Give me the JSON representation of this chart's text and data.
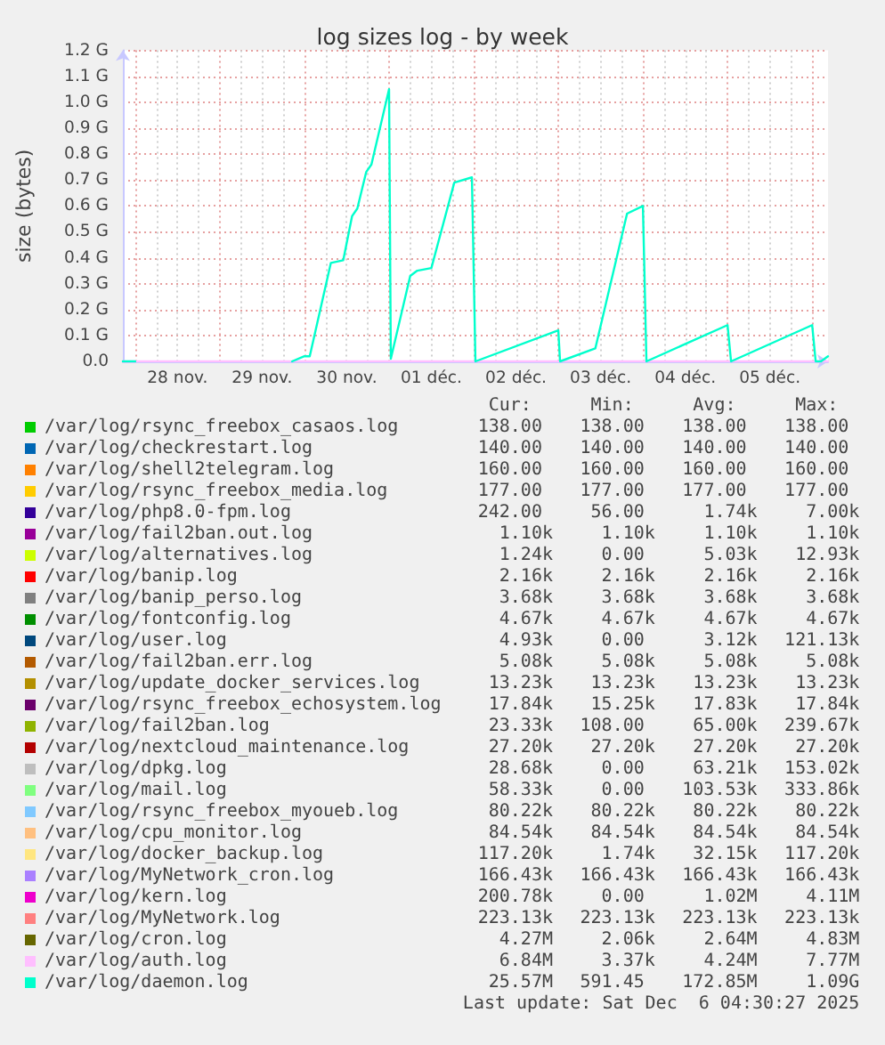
{
  "chart_data": {
    "type": "line",
    "title": "log sizes log - by week",
    "ylabel": "size (bytes)",
    "x": [
      "2025-11-27T20:30",
      "2025-12-06T04:30"
    ],
    "xlim": [
      "2025-11-27T20:30",
      "2025-12-06T04:30"
    ],
    "xticks": [
      {
        "value": "2025-11-28T00:00",
        "label": null
      },
      {
        "value": "2025-11-28T06:00",
        "label": null
      },
      {
        "value": "2025-11-28T12:00",
        "label": "28 nov."
      },
      {
        "value": "2025-11-28T18:00",
        "label": null
      },
      {
        "value": "2025-11-29T00:00",
        "label": null
      },
      {
        "value": "2025-11-29T06:00",
        "label": null
      },
      {
        "value": "2025-11-29T12:00",
        "label": "29 nov."
      },
      {
        "value": "2025-11-29T18:00",
        "label": null
      },
      {
        "value": "2025-11-30T00:00",
        "label": null
      },
      {
        "value": "2025-11-30T06:00",
        "label": null
      },
      {
        "value": "2025-11-30T12:00",
        "label": "30 nov."
      },
      {
        "value": "2025-11-30T18:00",
        "label": null
      },
      {
        "value": "2025-12-01T00:00",
        "label": null
      },
      {
        "value": "2025-12-01T06:00",
        "label": null
      },
      {
        "value": "2025-12-01T12:00",
        "label": "01 déc."
      },
      {
        "value": "2025-12-01T18:00",
        "label": null
      },
      {
        "value": "2025-12-02T00:00",
        "label": null
      },
      {
        "value": "2025-12-02T06:00",
        "label": null
      },
      {
        "value": "2025-12-02T12:00",
        "label": "02 déc."
      },
      {
        "value": "2025-12-02T18:00",
        "label": null
      },
      {
        "value": "2025-12-03T00:00",
        "label": null
      },
      {
        "value": "2025-12-03T06:00",
        "label": null
      },
      {
        "value": "2025-12-03T12:00",
        "label": "03 déc."
      },
      {
        "value": "2025-12-03T18:00",
        "label": null
      },
      {
        "value": "2025-12-04T00:00",
        "label": null
      },
      {
        "value": "2025-12-04T06:00",
        "label": null
      },
      {
        "value": "2025-12-04T12:00",
        "label": "04 déc."
      },
      {
        "value": "2025-12-04T18:00",
        "label": null
      },
      {
        "value": "2025-12-05T00:00",
        "label": null
      },
      {
        "value": "2025-12-05T06:00",
        "label": null
      },
      {
        "value": "2025-12-05T12:00",
        "label": "05 déc."
      },
      {
        "value": "2025-12-05T18:00",
        "label": null
      },
      {
        "value": "2025-12-06T00:00",
        "label": null
      }
    ],
    "ylim": [
      0,
      1.2
    ],
    "yticks": [
      {
        "value": 0,
        "label": "0.0"
      },
      {
        "value": 0.1,
        "label": "0.1 G"
      },
      {
        "value": 0.2,
        "label": "0.2 G"
      },
      {
        "value": 0.3,
        "label": "0.3 G"
      },
      {
        "value": 0.4,
        "label": "0.4 G"
      },
      {
        "value": 0.5,
        "label": "0.5 G"
      },
      {
        "value": 0.6,
        "label": "0.6 G"
      },
      {
        "value": 0.7,
        "label": "0.7 G"
      },
      {
        "value": 0.8,
        "label": "0.8 G"
      },
      {
        "value": 0.9,
        "label": "0.9 G"
      },
      {
        "value": 1.0,
        "label": "1.0 G"
      },
      {
        "value": 1.1,
        "label": "1.1 G"
      },
      {
        "value": 1.2,
        "label": "1.2 G"
      }
    ],
    "grid": true,
    "legend": "bottom",
    "marker": "none",
    "series": [
      {
        "name": "/var/log/rsync_freebox_casaos.log",
        "color": "#00cc00",
        "values": [
          null,
          null
        ]
      },
      {
        "name": "/var/log/checkrestart.log",
        "color": "#0066b3",
        "values": [
          null,
          null
        ]
      },
      {
        "name": "/var/log/shell2telegram.log",
        "color": "#ff8000",
        "values": [
          null,
          null
        ]
      },
      {
        "name": "/var/log/rsync_freebox_media.log",
        "color": "#ffcc00",
        "values": [
          null,
          null
        ]
      },
      {
        "name": "/var/log/php8.0-fpm.log",
        "color": "#330099",
        "values": [
          null,
          null
        ]
      },
      {
        "name": "/var/log/fail2ban.out.log",
        "color": "#990099",
        "values": [
          null,
          null
        ]
      },
      {
        "name": "/var/log/alternatives.log",
        "color": "#ccff00",
        "values": [
          null,
          null
        ]
      },
      {
        "name": "/var/log/banip.log",
        "color": "#ff0000",
        "values": [
          null,
          null
        ]
      },
      {
        "name": "/var/log/banip_perso.log",
        "color": "#808080",
        "values": [
          null,
          null
        ]
      },
      {
        "name": "/var/log/fontconfig.log",
        "color": "#008f00",
        "values": [
          null,
          null
        ]
      },
      {
        "name": "/var/log/user.log",
        "color": "#00487d",
        "values": [
          null,
          null
        ]
      },
      {
        "name": "/var/log/fail2ban.err.log",
        "color": "#b35a00",
        "values": [
          null,
          null
        ]
      },
      {
        "name": "/var/log/update_docker_services.log",
        "color": "#b38f00",
        "values": [
          null,
          null
        ]
      },
      {
        "name": "/var/log/rsync_freebox_echosystem.log",
        "color": "#6b006b",
        "values": [
          null,
          null
        ]
      },
      {
        "name": "/var/log/fail2ban.log",
        "color": "#8fb300",
        "values": [
          null,
          null
        ]
      },
      {
        "name": "/var/log/nextcloud_maintenance.log",
        "color": "#b30000",
        "values": [
          null,
          null
        ]
      },
      {
        "name": "/var/log/dpkg.log",
        "color": "#bebebe",
        "values": [
          null,
          null
        ]
      },
      {
        "name": "/var/log/mail.log",
        "color": "#80ff80",
        "values": [
          null,
          null
        ]
      },
      {
        "name": "/var/log/rsync_freebox_myoueb.log",
        "color": "#80c9ff",
        "values": [
          null,
          null
        ]
      },
      {
        "name": "/var/log/cpu_monitor.log",
        "color": "#ffc080",
        "values": [
          null,
          null
        ]
      },
      {
        "name": "/var/log/docker_backup.log",
        "color": "#ffe680",
        "values": [
          null,
          null
        ]
      },
      {
        "name": "/var/log/MyNetwork_cron.log",
        "color": "#aa80ff",
        "values": [
          null,
          null
        ]
      },
      {
        "name": "/var/log/kern.log",
        "color": "#ee00cc",
        "values": [
          null,
          null
        ]
      },
      {
        "name": "/var/log/MyNetwork.log",
        "color": "#ff8080",
        "values": [
          null,
          null
        ]
      },
      {
        "name": "/var/log/cron.log",
        "color": "#666600",
        "values": [
          null,
          null
        ]
      },
      {
        "name": "/var/log/auth.log",
        "color": "#ffbfff",
        "values": [
          0,
          0
        ]
      },
      {
        "name": "/var/log/daemon.log",
        "color": "#00ffcc",
        "x": [
          "2025-11-27T20:30",
          "2025-11-28T00:00",
          "2025-11-28T00:30",
          "2025-11-29T20:30",
          "2025-11-30T00:00",
          "2025-11-30T01:30",
          "2025-11-30T07:30",
          "2025-11-30T11:00",
          "2025-11-30T13:30",
          "2025-11-30T15:00",
          "2025-11-30T17:30",
          "2025-11-30T19:00",
          "2025-12-01T00:00",
          "2025-12-01T00:30",
          "2025-12-01T06:00",
          "2025-12-01T08:00",
          "2025-12-01T12:00",
          "2025-12-01T18:30",
          "2025-12-01T23:30",
          "2025-12-02T00:30",
          "2025-12-03T00:00",
          "2025-12-03T00:30",
          "2025-12-03T10:30",
          "2025-12-03T19:30",
          "2025-12-04T00:00",
          "2025-12-04T01:00",
          "2025-12-05T00:00",
          "2025-12-05T01:00",
          "2025-12-06T00:00",
          "2025-12-06T01:00",
          "2025-12-06T02:30",
          "2025-12-06T04:30"
        ],
        "values": [
          0,
          0,
          null,
          0,
          0.02,
          0.02,
          0.38,
          0.39,
          0.56,
          0.59,
          0.73,
          0.76,
          1.05,
          0.01,
          0.33,
          0.35,
          0.36,
          0.69,
          0.71,
          0,
          0.12,
          0,
          0.05,
          0.57,
          0.6,
          0,
          0.14,
          0,
          0.14,
          0,
          0,
          0.02
        ]
      }
    ],
    "annotations": [
      "Cur:",
      "Min:",
      "Avg:",
      "Max:",
      "138.00",
      "138.00",
      "138.00",
      "138.00",
      "140.00",
      "140.00",
      "140.00",
      "140.00",
      "160.00",
      "160.00",
      "160.00",
      "160.00",
      "177.00",
      "177.00",
      "177.00",
      "177.00",
      "242.00",
      "56.00",
      "1.74k",
      "7.00k",
      "1.10k",
      "1.10k",
      "1.10k",
      "1.10k",
      "1.24k",
      "0.00",
      "5.03k",
      "12.93k",
      "2.16k",
      "2.16k",
      "2.16k",
      "2.16k",
      "3.68k",
      "3.68k",
      "3.68k",
      "3.68k",
      "4.67k",
      "4.67k",
      "4.67k",
      "4.67k",
      "4.93k",
      "0.00",
      "3.12k",
      "121.13k",
      "5.08k",
      "5.08k",
      "5.08k",
      "5.08k",
      "13.23k",
      "13.23k",
      "13.23k",
      "13.23k",
      "17.84k",
      "15.25k",
      "17.83k",
      "17.84k",
      "23.33k",
      "108.00",
      "65.00k",
      "239.67k",
      "27.20k",
      "27.20k",
      "27.20k",
      "27.20k",
      "28.68k",
      "0.00",
      "63.21k",
      "153.02k",
      "58.33k",
      "0.00",
      "103.53k",
      "333.86k",
      "80.22k",
      "80.22k",
      "80.22k",
      "80.22k",
      "84.54k",
      "84.54k",
      "84.54k",
      "84.54k",
      "117.20k",
      "1.74k",
      "32.15k",
      "117.20k",
      "166.43k",
      "166.43k",
      "166.43k",
      "166.43k",
      "200.78k",
      "0.00",
      "1.02M",
      "4.11M",
      "223.13k",
      "223.13k",
      "223.13k",
      "223.13k",
      "4.27M",
      "2.06k",
      "2.64M",
      "4.83M",
      "6.84M",
      "3.37k",
      "4.24M",
      "7.77M",
      "25.57M",
      "591.45",
      "172.85M",
      "1.09G",
      "Last update: Sat Dec  6 04:30:27 2025"
    ]
  }
}
